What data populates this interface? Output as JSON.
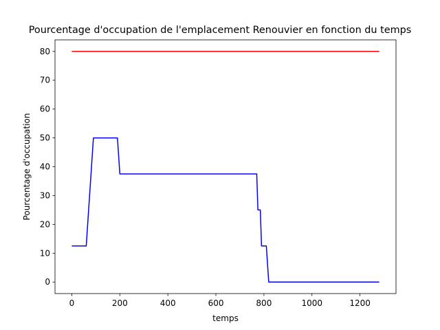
{
  "chart_data": {
    "type": "line",
    "title": "Pourcentage d'occupation de l'emplacement Renouvier en fonction du temps",
    "xlabel": "temps",
    "ylabel": "Pourcentage d'occupation",
    "xlim": [
      -70,
      1350
    ],
    "ylim": [
      -4,
      84
    ],
    "xticks": [
      0,
      200,
      400,
      600,
      800,
      1000,
      1200
    ],
    "yticks": [
      0,
      10,
      20,
      30,
      40,
      50,
      60,
      70,
      80
    ],
    "grid": false,
    "legend": "none",
    "series": [
      {
        "color": "#ff0000",
        "x": [
          0,
          1280
        ],
        "y": [
          80,
          80
        ]
      },
      {
        "color": "#0000ff",
        "x": [
          0,
          60,
          90,
          190,
          200,
          770,
          775,
          785,
          790,
          795,
          810,
          820,
          1280
        ],
        "y": [
          12.5,
          12.5,
          50,
          50,
          37.5,
          37.5,
          25,
          25,
          12.5,
          12.5,
          12.5,
          0,
          0
        ]
      }
    ]
  }
}
